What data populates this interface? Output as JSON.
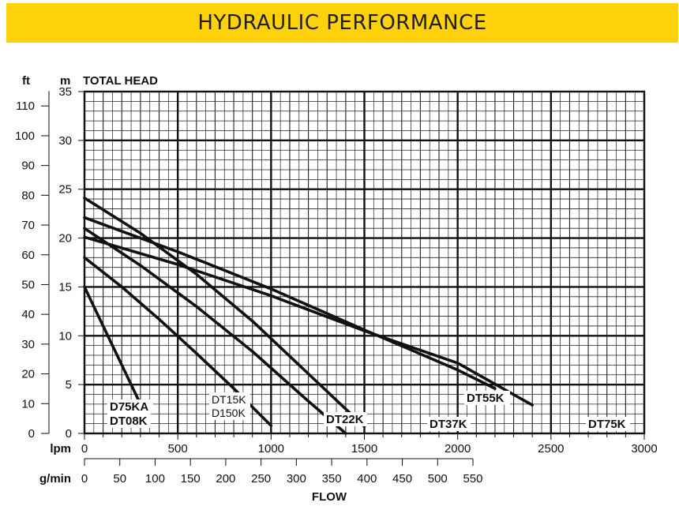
{
  "header": {
    "title": "HYDRAULIC PERFORMANCE"
  },
  "chart_data": {
    "type": "line",
    "title": "HYDRAULIC PERFORMANCE",
    "ylabel": "TOTAL HEAD",
    "xlabel": "FLOW",
    "y_unit_m": "m",
    "y_unit_ft": "ft",
    "x_unit_lpm": "lpm",
    "x_unit_gmin": "g/min",
    "xlim": [
      0,
      3000
    ],
    "ylim": [
      0,
      35
    ],
    "grid": true,
    "y_ticks_m": [
      "0",
      "5",
      "10",
      "15",
      "20",
      "25",
      "30",
      "35"
    ],
    "y_ticks_ft": [
      "0",
      "10",
      "20",
      "30",
      "40",
      "50",
      "60",
      "70",
      "80",
      "90",
      "100",
      "110"
    ],
    "x_ticks_lpm": [
      "0",
      "500",
      "1000",
      "1500",
      "2000",
      "2500",
      "3000"
    ],
    "x_ticks_gmin": [
      "0",
      "50",
      "100",
      "150",
      "200",
      "250",
      "300",
      "350",
      "400",
      "450",
      "500",
      "550"
    ],
    "series": [
      {
        "name": "D75KA",
        "name2": "DT08K",
        "x": [
          0,
          100,
          200,
          300,
          340
        ],
        "y": [
          15,
          11,
          7,
          3,
          2.3
        ]
      },
      {
        "name": "DT15K",
        "name2": "D150K",
        "x": [
          0,
          200,
          400,
          600,
          800,
          1000
        ],
        "y": [
          18,
          15,
          11.7,
          8.2,
          4.6,
          0.8
        ]
      },
      {
        "name": "DT22K",
        "x": [
          0,
          300,
          600,
          900,
          1200,
          1400
        ],
        "y": [
          21,
          17.2,
          13,
          8.4,
          3.3,
          0
        ]
      },
      {
        "name": "DT37K",
        "x": [
          0,
          300,
          600,
          900,
          1200,
          1500
        ],
        "y": [
          24.1,
          20.5,
          16.3,
          11.5,
          6.1,
          0.7
        ]
      },
      {
        "name": "DT55K",
        "x": [
          0,
          500,
          1000,
          1500,
          2000,
          2200
        ],
        "y": [
          22.1,
          18.6,
          14.8,
          10.6,
          6.5,
          4.6
        ]
      },
      {
        "name": "DT75K",
        "x": [
          0,
          500,
          1000,
          1500,
          2000,
          2400
        ],
        "y": [
          20.1,
          17.3,
          14.1,
          10.5,
          7.2,
          2.9
        ]
      }
    ]
  }
}
